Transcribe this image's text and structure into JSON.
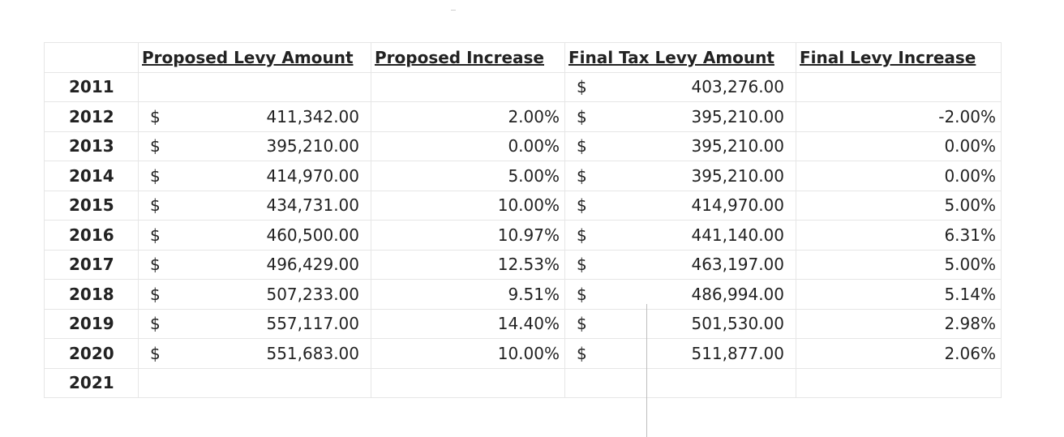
{
  "headers": {
    "proposed_amount": "Proposed Levy Amount",
    "proposed_increase": "Proposed Increase",
    "final_amount": "Final Tax Levy Amount",
    "final_increase": "Final Levy Increase"
  },
  "currency_symbol": "$",
  "rows": [
    {
      "year": "2011",
      "proposed_amount": "",
      "proposed_increase": "",
      "final_amount": "403,276.00",
      "final_increase": ""
    },
    {
      "year": "2012",
      "proposed_amount": "411,342.00",
      "proposed_increase": "2.00%",
      "final_amount": "395,210.00",
      "final_increase": "-2.00%"
    },
    {
      "year": "2013",
      "proposed_amount": "395,210.00",
      "proposed_increase": "0.00%",
      "final_amount": "395,210.00",
      "final_increase": "0.00%"
    },
    {
      "year": "2014",
      "proposed_amount": "414,970.00",
      "proposed_increase": "5.00%",
      "final_amount": "395,210.00",
      "final_increase": "0.00%"
    },
    {
      "year": "2015",
      "proposed_amount": "434,731.00",
      "proposed_increase": "10.00%",
      "final_amount": "414,970.00",
      "final_increase": "5.00%"
    },
    {
      "year": "2016",
      "proposed_amount": "460,500.00",
      "proposed_increase": "10.97%",
      "final_amount": "441,140.00",
      "final_increase": "6.31%"
    },
    {
      "year": "2017",
      "proposed_amount": "496,429.00",
      "proposed_increase": "12.53%",
      "final_amount": "463,197.00",
      "final_increase": "5.00%"
    },
    {
      "year": "2018",
      "proposed_amount": "507,233.00",
      "proposed_increase": "9.51%",
      "final_amount": "486,994.00",
      "final_increase": "5.14%"
    },
    {
      "year": "2019",
      "proposed_amount": "557,117.00",
      "proposed_increase": "14.40%",
      "final_amount": "501,530.00",
      "final_increase": "2.98%"
    },
    {
      "year": "2020",
      "proposed_amount": "551,683.00",
      "proposed_increase": "10.00%",
      "final_amount": "511,877.00",
      "final_increase": "2.06%"
    },
    {
      "year": "2021",
      "proposed_amount": "",
      "proposed_increase": "",
      "final_amount": "",
      "final_increase": ""
    }
  ]
}
